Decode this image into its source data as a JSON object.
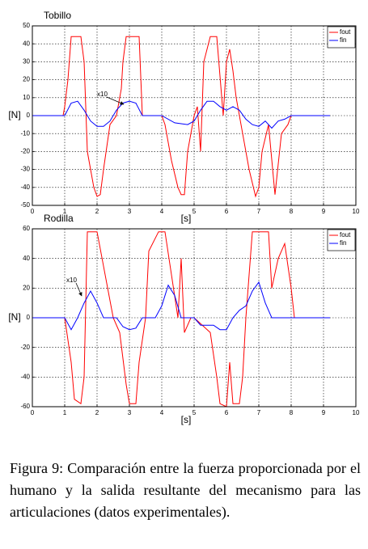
{
  "chart_data": [
    {
      "type": "line",
      "title": "Tobillo",
      "xlabel": "[s]",
      "ylabel": "[N]",
      "annotation": "x10",
      "xlim": [
        0,
        10
      ],
      "ylim": [
        -50,
        50
      ],
      "xticks": [
        0,
        1,
        2,
        3,
        4,
        5,
        6,
        7,
        8,
        9,
        10
      ],
      "yticks": [
        -50,
        -40,
        -30,
        -20,
        -10,
        0,
        10,
        20,
        30,
        40,
        50
      ],
      "grid": true,
      "legend": "upper right",
      "series": [
        {
          "name": "fout",
          "color": "#ff0000",
          "x": [
            0,
            0.95,
            1.0,
            1.1,
            1.2,
            1.35,
            1.5,
            1.6,
            1.7,
            1.8,
            1.9,
            2.0,
            2.1,
            2.2,
            2.4,
            2.6,
            2.7,
            2.75,
            2.8,
            2.9,
            3.0,
            3.3,
            3.4,
            3.5,
            4.0,
            4.1,
            4.3,
            4.5,
            4.6,
            4.7,
            4.8,
            5.0,
            5.1,
            5.2,
            5.3,
            5.5,
            5.7,
            5.9,
            6.0,
            6.1,
            6.2,
            6.3,
            6.5,
            6.7,
            6.9,
            7.0,
            7.1,
            7.3,
            7.5,
            7.7,
            7.9,
            8.0,
            8.1,
            9.2
          ],
          "values": [
            0,
            0,
            5,
            20,
            44,
            44,
            44,
            30,
            -20,
            -30,
            -40,
            -45,
            -44,
            -30,
            -5,
            0,
            10,
            15,
            30,
            44,
            44,
            44,
            0,
            0,
            0,
            -5,
            -25,
            -40,
            -44,
            -44,
            -20,
            0,
            5,
            -20,
            30,
            44,
            44,
            0,
            30,
            37,
            25,
            10,
            -10,
            -30,
            -45,
            -40,
            -20,
            -5,
            -44,
            -10,
            -5,
            0,
            0,
            0
          ]
        },
        {
          "name": "fin",
          "color": "#0000ff",
          "x": [
            0,
            1.0,
            1.2,
            1.4,
            1.6,
            1.8,
            2.0,
            2.2,
            2.4,
            2.6,
            2.8,
            3.0,
            3.2,
            3.4,
            3.6,
            4.0,
            4.4,
            4.8,
            5.0,
            5.2,
            5.4,
            5.6,
            5.8,
            6.0,
            6.2,
            6.4,
            6.6,
            6.8,
            7.0,
            7.2,
            7.4,
            7.6,
            7.8,
            8.0,
            9.2
          ],
          "values": [
            0,
            0,
            7,
            8,
            3,
            -3,
            -6,
            -6,
            -3,
            3,
            7,
            8,
            7,
            0,
            0,
            0,
            -4,
            -5,
            -3,
            3,
            8,
            8,
            5,
            3,
            5,
            3,
            -2,
            -5,
            -6,
            -3,
            -7,
            -3,
            -2,
            0,
            0
          ]
        }
      ]
    },
    {
      "type": "line",
      "title": "Rodilla",
      "xlabel": "[s]",
      "ylabel": "[N]",
      "annotation": "x10",
      "xlim": [
        0,
        10
      ],
      "ylim": [
        -60,
        60
      ],
      "xticks": [
        0,
        1,
        2,
        3,
        4,
        5,
        6,
        7,
        8,
        9,
        10
      ],
      "yticks": [
        -60,
        -40,
        -20,
        0,
        20,
        40,
        60
      ],
      "grid": true,
      "legend": "upper right",
      "series": [
        {
          "name": "fout",
          "color": "#ff0000",
          "x": [
            0,
            1.0,
            1.2,
            1.3,
            1.5,
            1.6,
            1.7,
            1.9,
            2.0,
            2.5,
            2.7,
            2.9,
            3.0,
            3.2,
            3.3,
            3.5,
            3.6,
            3.9,
            4.0,
            4.1,
            4.5,
            4.6,
            4.7,
            4.9,
            5.0,
            5.5,
            5.7,
            5.8,
            6.0,
            6.1,
            6.2,
            6.4,
            6.5,
            6.6,
            6.8,
            6.9,
            7.3,
            7.4,
            7.6,
            7.8,
            8.0,
            8.1,
            9.2
          ],
          "values": [
            0,
            0,
            -30,
            -55,
            -58,
            -40,
            58,
            58,
            58,
            0,
            -10,
            -45,
            -58,
            -58,
            -30,
            0,
            45,
            58,
            58,
            58,
            0,
            40,
            -10,
            0,
            0,
            -10,
            -40,
            -58,
            -60,
            -30,
            -58,
            -58,
            -40,
            0,
            58,
            58,
            58,
            20,
            40,
            50,
            20,
            0,
            0
          ]
        },
        {
          "name": "fin",
          "color": "#0000ff",
          "x": [
            0,
            1.0,
            1.2,
            1.4,
            1.6,
            1.8,
            2.0,
            2.2,
            2.6,
            2.8,
            3.0,
            3.2,
            3.4,
            3.8,
            4.0,
            4.2,
            4.4,
            4.6,
            5.0,
            5.2,
            5.6,
            5.8,
            6.0,
            6.2,
            6.4,
            6.6,
            6.8,
            7.0,
            7.2,
            7.4,
            8.0,
            9.2
          ],
          "values": [
            0,
            0,
            -8,
            0,
            10,
            18,
            10,
            0,
            0,
            -6,
            -8,
            -7,
            0,
            0,
            8,
            22,
            15,
            0,
            0,
            -5,
            -5,
            -8,
            -8,
            0,
            5,
            8,
            18,
            24,
            10,
            0,
            0,
            0
          ]
        }
      ]
    }
  ],
  "caption": "Figura 9: Comparación entre la fuerza proporcionada por el humano y la salida resultante del mecanismo para las articulaciones (datos experimentales)."
}
